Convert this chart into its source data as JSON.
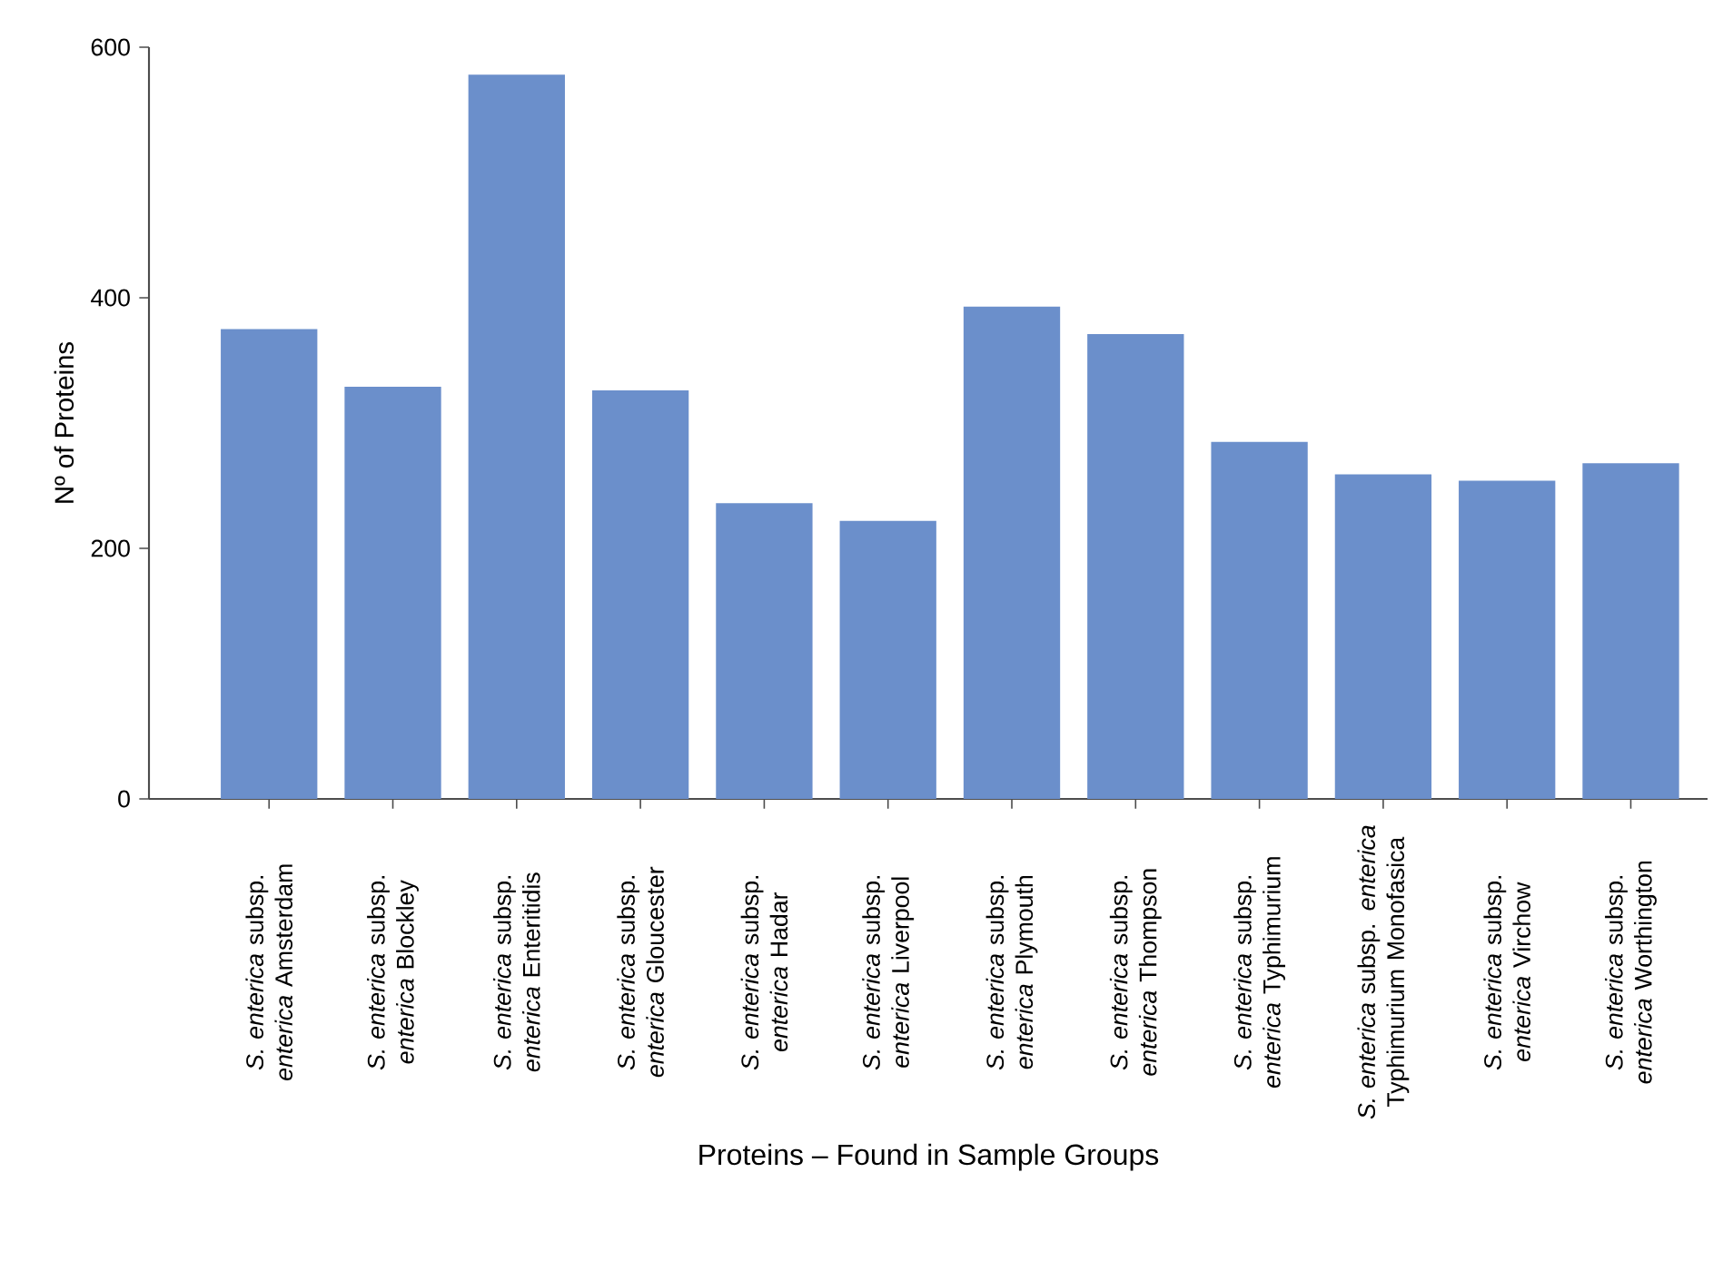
{
  "chart_data": {
    "type": "bar",
    "xlabel": "Proteins – Found in Sample Groups",
    "ylabel": "Nº of Proteins",
    "categories": [
      "*S. enterica* subsp. *enterica* Amsterdam",
      "*S. enterica* subsp. *enterica* Blockley",
      "*S. enterica* subsp. *enterica* Enteritidis",
      "*S. enterica* subsp. *enterica* Gloucester",
      "*S. enterica* subsp. *enterica* Hadar",
      "*S. enterica* subsp. *enterica* Liverpool",
      "*S. enterica* subsp. *enterica* Plymouth",
      "*S. enterica* subsp. *enterica* Thompson",
      "*S. enterica* subsp. *enterica* Typhimurium",
      "*S. enterica* subsp. *enterica* Typhimurium Monofasica",
      "*S. enterica* subsp. *enterica* Virchow",
      "*S. enterica* subsp. *enterica* Worthington"
    ],
    "values": [
      375,
      329,
      578,
      326,
      236,
      222,
      393,
      371,
      285,
      259,
      254,
      268
    ],
    "color": "#6b8fcb",
    "ylim": [
      0,
      600
    ],
    "yticks": [
      0,
      200,
      400,
      600
    ]
  }
}
